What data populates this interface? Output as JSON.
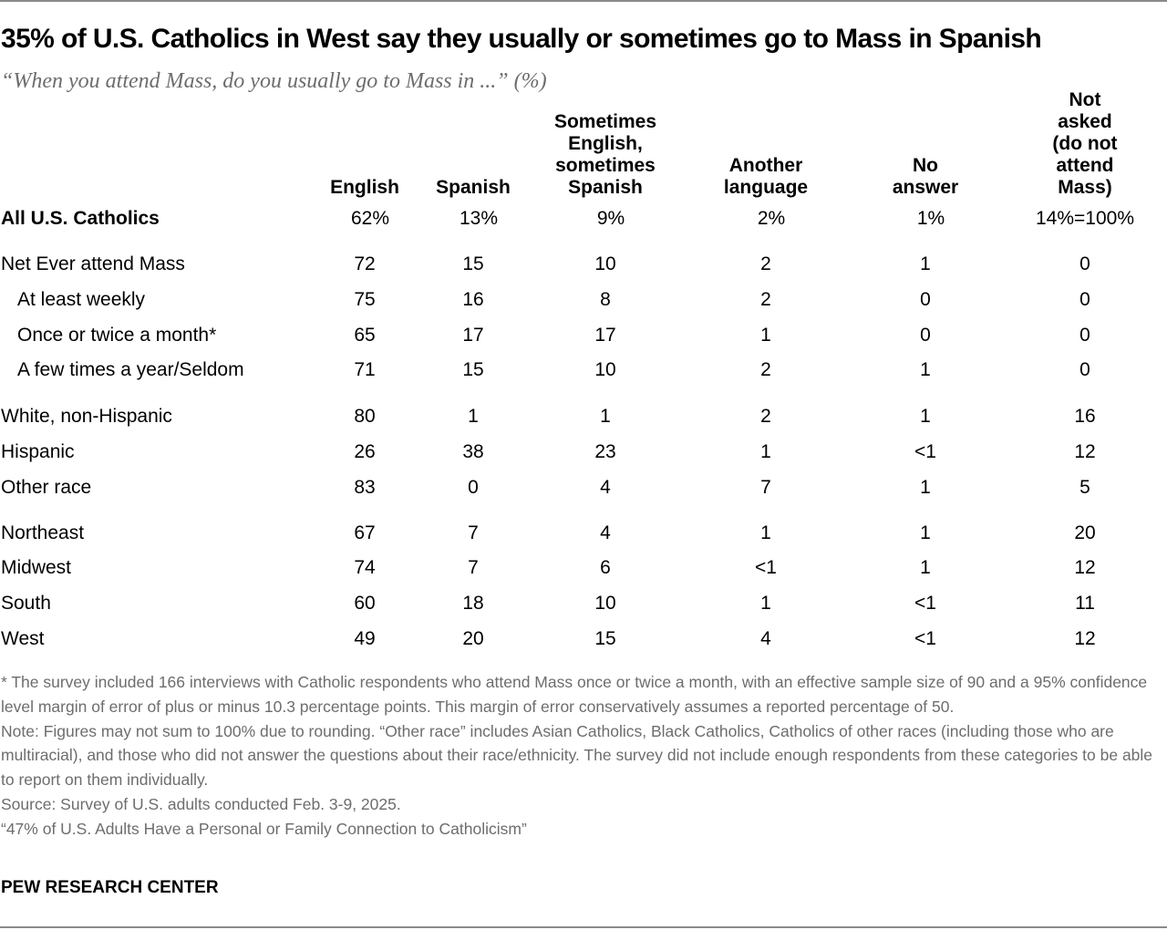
{
  "chart_data": {
    "type": "table",
    "title": "35% of U.S. Catholics in West say they usually or sometimes go to Mass in Spanish",
    "subtitle": "“When you attend Mass, do you usually go to Mass in ...” (%)",
    "columns": [
      "English",
      "Spanish",
      "Sometimes\nEnglish,\nsometimes\nSpanish",
      "Another\nlanguage",
      "No\nanswer",
      "Not asked\n(do not attend\nMass)"
    ],
    "rows": [
      {
        "label": "All U.S. Catholics",
        "bold": true,
        "values": [
          "62%",
          "13%",
          "9%",
          "2%",
          "1%",
          "14%=100%"
        ]
      },
      {
        "label": "Net Ever attend Mass",
        "values": [
          "72",
          "15",
          "10",
          "2",
          "1",
          "0"
        ]
      },
      {
        "label": "At least weekly",
        "indent": true,
        "values": [
          "75",
          "16",
          "8",
          "2",
          "0",
          "0"
        ]
      },
      {
        "label": "Once or twice a month*",
        "indent": true,
        "values": [
          "65",
          "17",
          "17",
          "1",
          "0",
          "0"
        ]
      },
      {
        "label": "A few times a year/Seldom",
        "indent": true,
        "values": [
          "71",
          "15",
          "10",
          "2",
          "1",
          "0"
        ]
      },
      {
        "label": "White, non-Hispanic",
        "values": [
          "80",
          "1",
          "1",
          "2",
          "1",
          "16"
        ]
      },
      {
        "label": "Hispanic",
        "values": [
          "26",
          "38",
          "23",
          "1",
          "<1",
          "12"
        ]
      },
      {
        "label": "Other race",
        "values": [
          "83",
          "0",
          "4",
          "7",
          "1",
          "5"
        ]
      },
      {
        "label": "Northeast",
        "values": [
          "67",
          "7",
          "4",
          "1",
          "1",
          "20"
        ]
      },
      {
        "label": "Midwest",
        "values": [
          "74",
          "7",
          "6",
          "<1",
          "1",
          "12"
        ]
      },
      {
        "label": "South",
        "values": [
          "60",
          "18",
          "10",
          "1",
          "<1",
          "11"
        ]
      },
      {
        "label": "West",
        "values": [
          "49",
          "20",
          "15",
          "4",
          "<1",
          "12"
        ]
      }
    ]
  },
  "notes": [
    "* The survey included 166 interviews with Catholic respondents who attend Mass once or twice a month, with an effective sample size of 90 and a 95% confidence level margin of error of plus or minus 10.3 percentage points. This margin of error conservatively assumes a reported percentage of 50.",
    "Note: Figures may not sum to 100% due to rounding. “Other race” includes Asian Catholics, Black Catholics, Catholics of other races (including those who are multiracial), and those who did not answer the questions about their race/ethnicity. The survey did not include enough respondents from these categories to be able to report on them individually.",
    "Source: Survey of U.S. adults conducted Feb. 3-9, 2025.",
    "“47% of U.S. Adults Have a Personal or Family Connection to Catholicism”"
  ],
  "brand": "PEW RESEARCH CENTER"
}
